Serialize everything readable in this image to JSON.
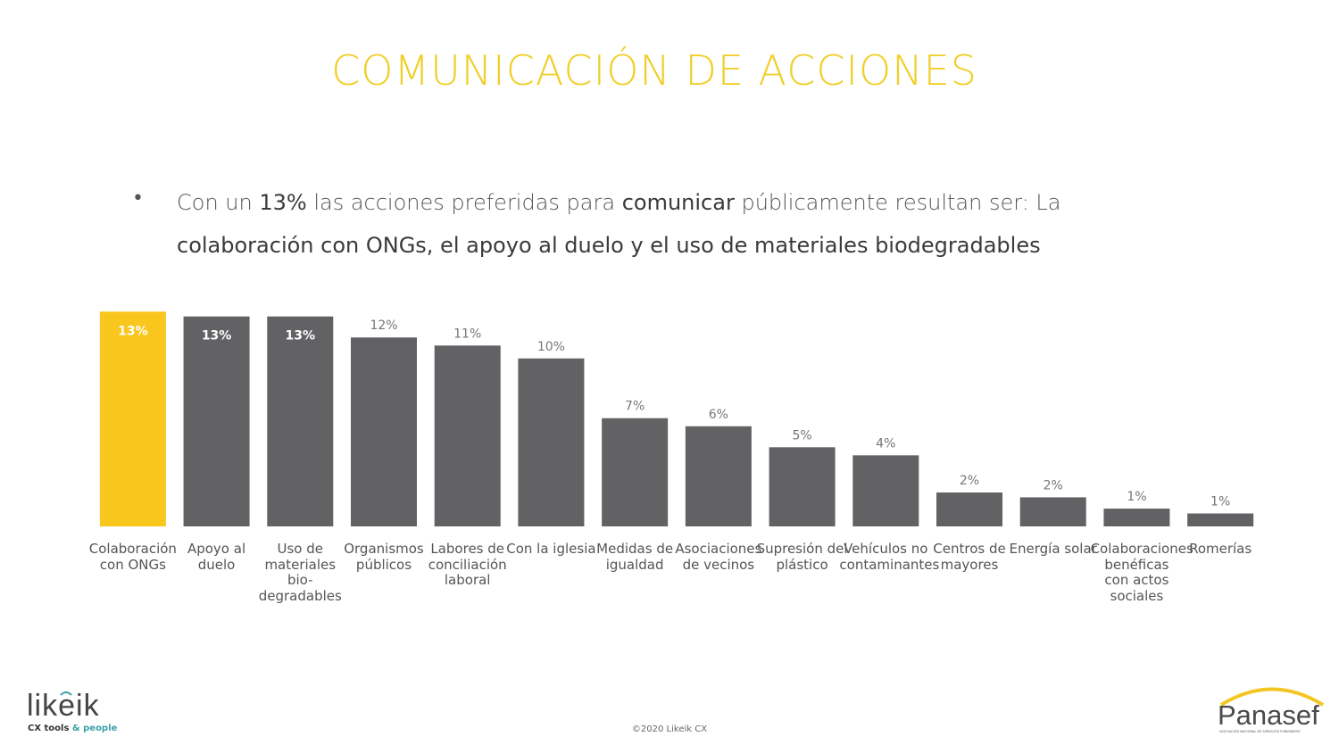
{
  "header": {
    "title": "COMUNICACIÓN DE ACCIONES"
  },
  "bullet": {
    "segments": [
      {
        "text": "Con un ",
        "bold": false
      },
      {
        "text": "13%",
        "bold": true
      },
      {
        "text": " las acciones preferidas para ",
        "bold": false
      },
      {
        "text": "comunicar",
        "bold": true
      },
      {
        "text": " públicamente resultan ser:  La ",
        "bold": false
      },
      {
        "text": "colaboración con ONGs, el apoyo al duelo y el uso de materiales biodegradables",
        "bold": true
      }
    ]
  },
  "chart_data": {
    "type": "bar",
    "categories": [
      "Colaboración con ONGs",
      "Apoyo al duelo",
      "Uso de materiales bio-degradables",
      "Organismos públicos",
      "Labores de conciliación laboral",
      "Con la iglesia",
      "Medidas de igualdad",
      "Asociaciones de vecinos",
      "Supresión del plástico",
      "Vehículos no contaminantes",
      "Centros de mayores",
      "Energía solar",
      "Colaboraciones benéficas con actos sociales",
      "Romerías"
    ],
    "values": [
      13.3,
      13,
      13,
      11.7,
      11.2,
      10.4,
      6.7,
      6.2,
      4.9,
      4.4,
      2.1,
      1.8,
      1.1,
      0.8
    ],
    "value_labels": [
      "13%",
      "13%",
      "13%",
      "12%",
      "11%",
      "10%",
      "7%",
      "6%",
      "5%",
      "4%",
      "2%",
      "2%",
      "1%",
      "1%"
    ],
    "colors": [
      "#f8c61c",
      "#626164",
      "#626164",
      "#626164",
      "#626164",
      "#626164",
      "#626164",
      "#626164",
      "#626164",
      "#626164",
      "#626164",
      "#626164",
      "#626164",
      "#626164"
    ],
    "ylim": [
      0,
      14
    ]
  },
  "footer": {
    "copyright": "©2020 Likeik CX",
    "likeik": {
      "name": "likeik",
      "tagline_a": "CX tools",
      "tagline_b": "& people"
    },
    "panasef": {
      "name": "Panasef",
      "subtitle": "ASOCIACIÓN NACIONAL DE SERVICIOS FUNERARIOS"
    }
  }
}
